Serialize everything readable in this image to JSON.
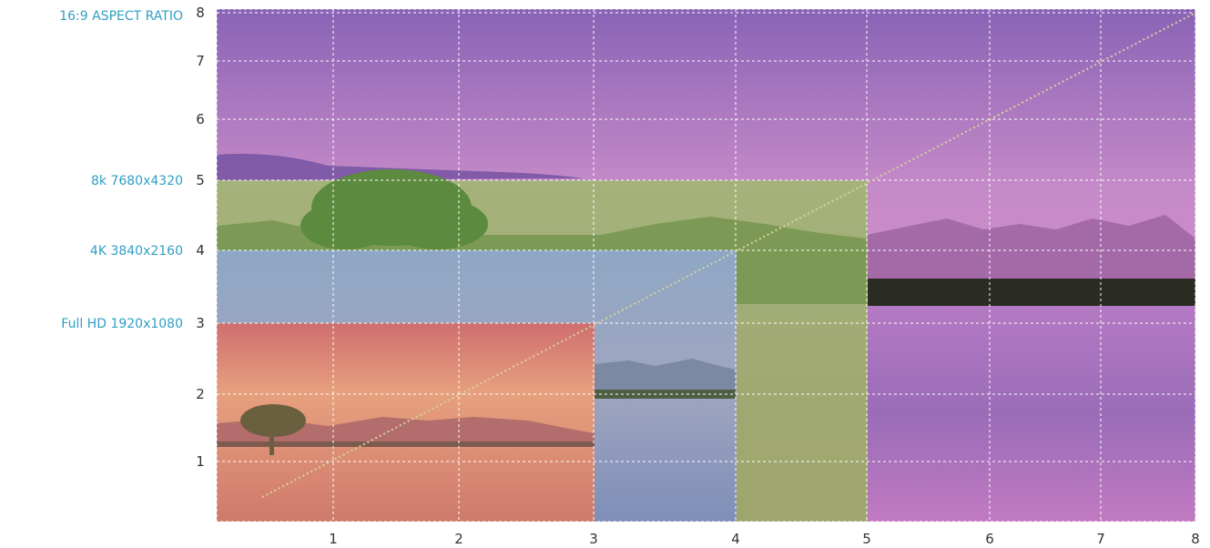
{
  "chart_data": {
    "type": "area",
    "title": "16:9 ASPECT RATIO",
    "xlabel": "",
    "ylabel": "",
    "x_ticks": [
      "1",
      "2",
      "3",
      "4",
      "5",
      "6",
      "7",
      "8"
    ],
    "y_ticks": [
      "1",
      "2",
      "3",
      "4",
      "5",
      "6",
      "7",
      "8"
    ],
    "grid": true,
    "regions": [
      {
        "label": "Full HD 1920x1080",
        "y_tick": "3",
        "color": "#e58a6d"
      },
      {
        "label": "4K 3840x2160",
        "y_tick": "4",
        "color": "#8fa6c4"
      },
      {
        "label": "8k 7680x4320",
        "y_tick": "5",
        "color": "#a7b77c"
      }
    ],
    "diagonal_line": true,
    "colors": {
      "label": "#2f9fc5",
      "tick": "#333333",
      "grid": "#ffffff",
      "diagonal": "#d9d29a"
    }
  }
}
